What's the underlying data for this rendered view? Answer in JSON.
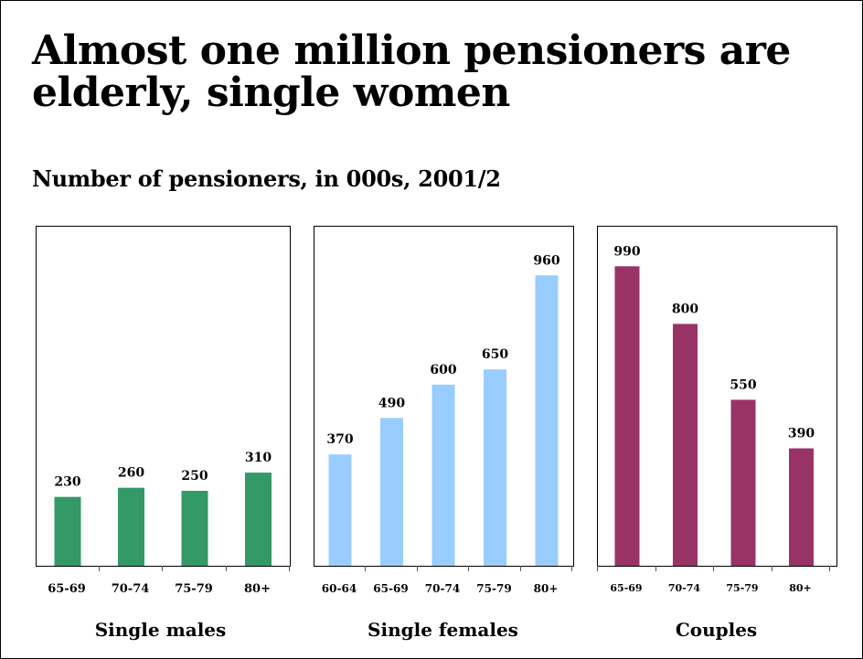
{
  "slide": {
    "title": "Almost one million pensioners are elderly, single women",
    "subtitle": "Number of pensioners, in 000s, 2001/2"
  },
  "chart_data": [
    {
      "type": "bar",
      "xlabel": "Single males",
      "categories": [
        "65-69",
        "70-74",
        "75-79",
        "80+"
      ],
      "values": [
        230,
        260,
        250,
        310
      ],
      "data_labels": [
        "230",
        "260",
        "250",
        "310"
      ],
      "color": "#339966",
      "ylim": [
        0,
        1000
      ]
    },
    {
      "type": "bar",
      "xlabel": "Single females",
      "categories": [
        "60-64",
        "65-69",
        "70-74",
        "75-79",
        "80+"
      ],
      "values": [
        370,
        490,
        600,
        650,
        960
      ],
      "data_labels": [
        "370",
        "490",
        "600",
        "650",
        "960"
      ],
      "color": "#99ccff",
      "ylim": [
        0,
        1000
      ]
    },
    {
      "type": "bar",
      "xlabel": "Couples",
      "categories": [
        "65-69",
        "70-74",
        "75-79",
        "80+"
      ],
      "values": [
        990,
        800,
        550,
        390
      ],
      "data_labels": [
        "990",
        "800",
        "550",
        "390"
      ],
      "color": "#993366",
      "ylim": [
        0,
        1000
      ]
    }
  ]
}
